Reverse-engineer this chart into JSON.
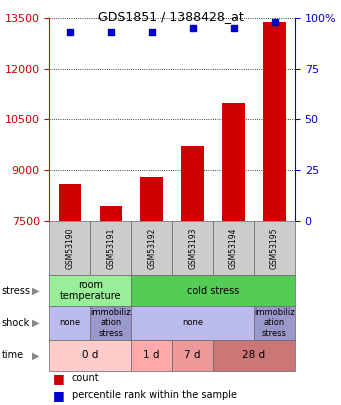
{
  "title": "GDS1851 / 1388428_at",
  "samples": [
    "GSM53190",
    "GSM53191",
    "GSM53192",
    "GSM53193",
    "GSM53194",
    "GSM53195"
  ],
  "counts": [
    8600,
    7950,
    8800,
    9700,
    11000,
    13400
  ],
  "percentile_ranks": [
    93,
    93,
    93,
    95,
    95,
    98
  ],
  "ylim_left": [
    7500,
    13500
  ],
  "yticks_left": [
    7500,
    9000,
    10500,
    12000,
    13500
  ],
  "ylim_right": [
    0,
    100
  ],
  "yticks_right": [
    0,
    25,
    50,
    75,
    100
  ],
  "bar_color": "#cc0000",
  "dot_color": "#0000cc",
  "bar_width": 0.55,
  "stress_row": [
    {
      "label": "room\ntemperature",
      "spans": [
        0,
        1
      ],
      "color": "#99ee99"
    },
    {
      "label": "cold stress",
      "spans": [
        2,
        3,
        4,
        5
      ],
      "color": "#55cc55"
    }
  ],
  "shock_row": [
    {
      "label": "none",
      "spans": [
        0
      ],
      "color": "#bbbbee"
    },
    {
      "label": "immobiliz\nation\nstress",
      "spans": [
        1
      ],
      "color": "#9999cc"
    },
    {
      "label": "none",
      "spans": [
        2,
        3,
        4
      ],
      "color": "#bbbbee"
    },
    {
      "label": "immobiliz\nation\nstress",
      "spans": [
        5
      ],
      "color": "#9999cc"
    }
  ],
  "time_row": [
    {
      "label": "0 d",
      "spans": [
        0,
        1
      ],
      "color": "#ffcccc"
    },
    {
      "label": "1 d",
      "spans": [
        2
      ],
      "color": "#ffaaaa"
    },
    {
      "label": "7 d",
      "spans": [
        3
      ],
      "color": "#ee9999"
    },
    {
      "label": "28 d",
      "spans": [
        4,
        5
      ],
      "color": "#cc7777"
    }
  ],
  "row_labels": [
    "stress",
    "shock",
    "time"
  ],
  "axis_label_color_left": "#cc0000",
  "axis_label_color_right": "#0000cc",
  "sample_box_color": "#cccccc",
  "grid_color": "#000000"
}
